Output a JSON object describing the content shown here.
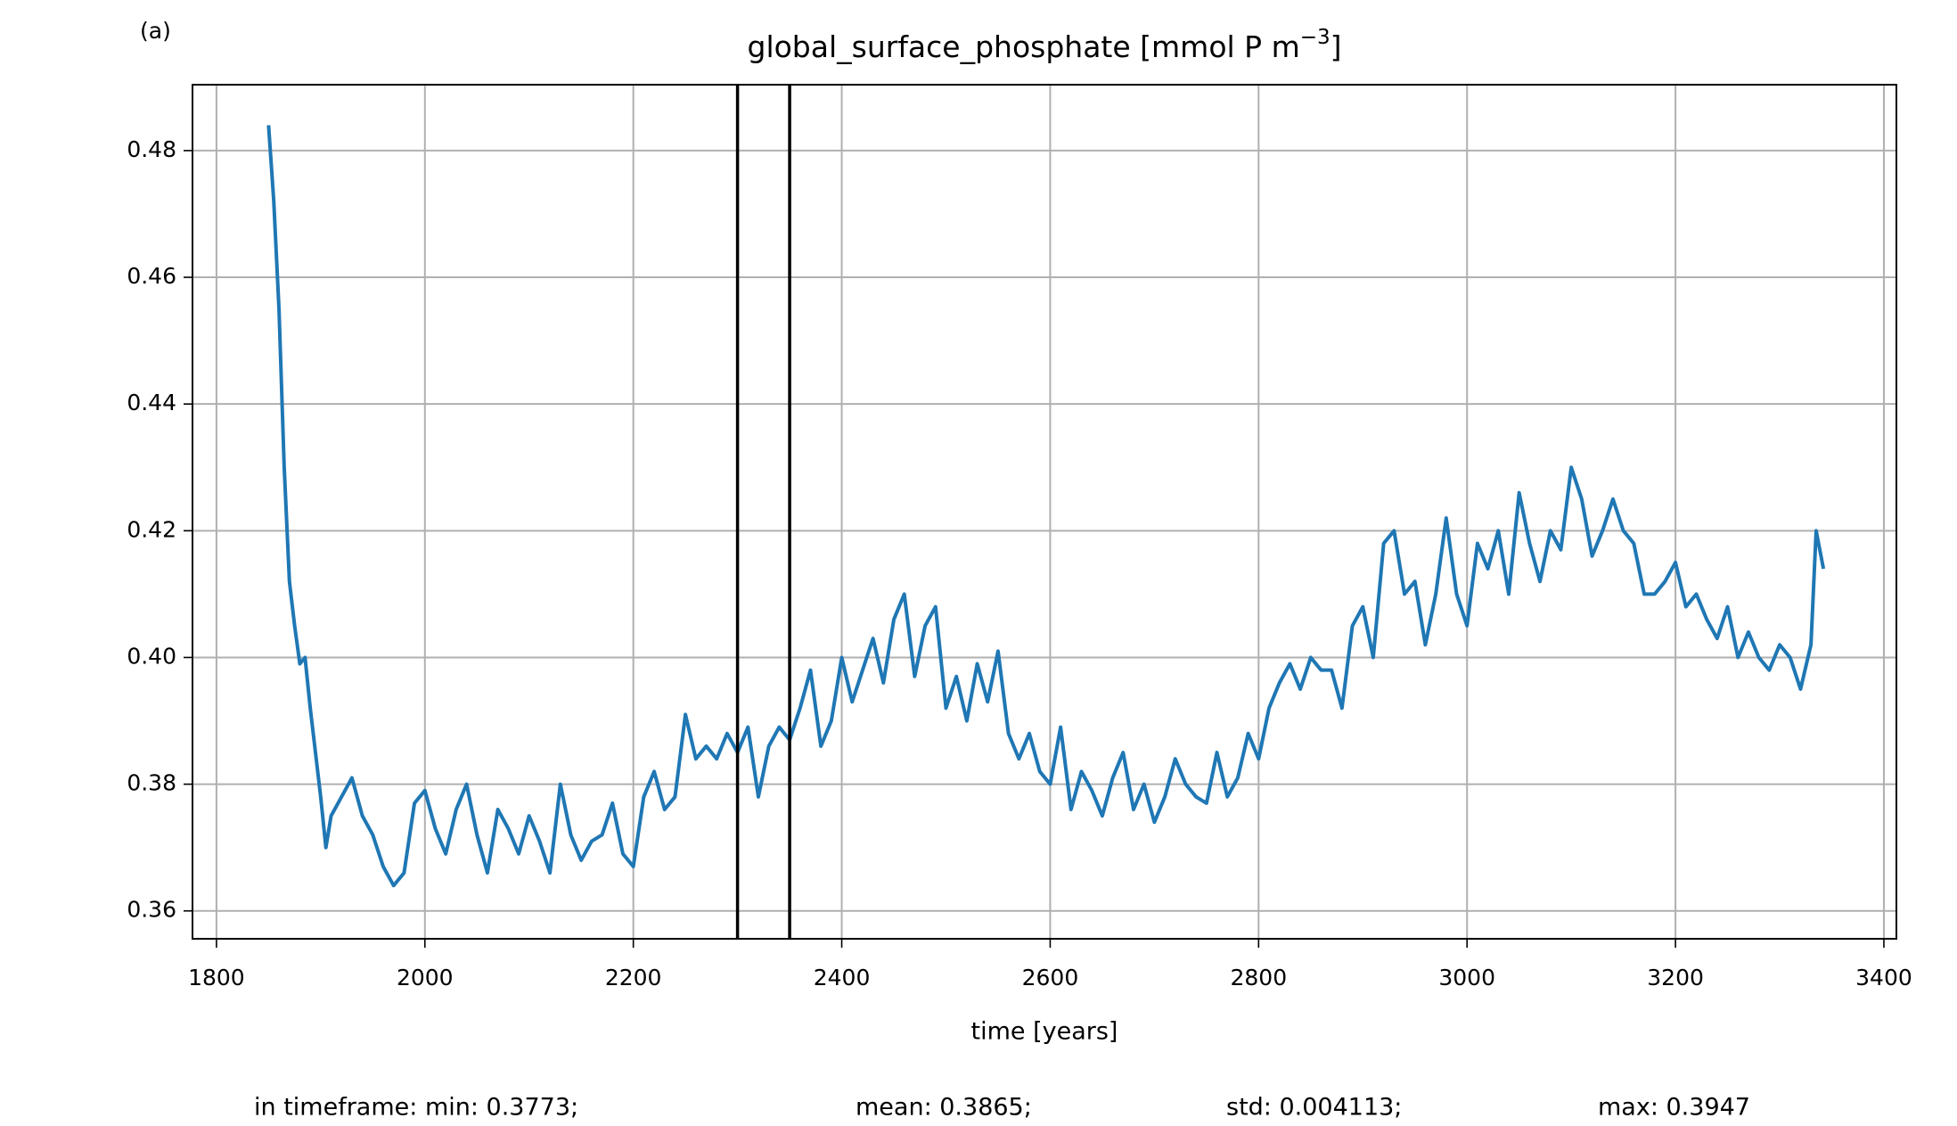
{
  "chart_data": {
    "type": "line",
    "panel_label": "(a)",
    "title": "global_surface_phosphate [mmol P m",
    "title_superscript": "−3",
    "title_end": "]",
    "xlabel": "time [years]",
    "annotations": [
      "in timeframe: min: 0.3773;",
      "mean: 0.3865;",
      "std: 0.004113;",
      "max: 0.3947"
    ],
    "x": [
      1850,
      1855,
      1860,
      1865,
      1870,
      1875,
      1880,
      1885,
      1890,
      1895,
      1900,
      1905,
      1910,
      1920,
      1930,
      1940,
      1950,
      1960,
      1970,
      1980,
      1990,
      2000,
      2010,
      2020,
      2030,
      2040,
      2050,
      2060,
      2070,
      2080,
      2090,
      2100,
      2110,
      2120,
      2130,
      2140,
      2150,
      2160,
      2170,
      2180,
      2190,
      2200,
      2210,
      2220,
      2230,
      2240,
      2250,
      2260,
      2270,
      2280,
      2290,
      2300,
      2310,
      2320,
      2330,
      2340,
      2350,
      2360,
      2370,
      2380,
      2390,
      2400,
      2410,
      2420,
      2430,
      2440,
      2450,
      2460,
      2470,
      2480,
      2490,
      2500,
      2510,
      2520,
      2530,
      2540,
      2550,
      2560,
      2570,
      2580,
      2590,
      2600,
      2610,
      2620,
      2630,
      2640,
      2650,
      2660,
      2670,
      2680,
      2690,
      2700,
      2710,
      2720,
      2730,
      2740,
      2750,
      2760,
      2770,
      2780,
      2790,
      2800,
      2810,
      2820,
      2830,
      2840,
      2850,
      2860,
      2870,
      2880,
      2890,
      2900,
      2910,
      2920,
      2930,
      2940,
      2950,
      2960,
      2970,
      2980,
      2990,
      3000,
      3010,
      3020,
      3030,
      3040,
      3050,
      3060,
      3070,
      3080,
      3090,
      3100,
      3110,
      3120,
      3130,
      3140,
      3150,
      3160,
      3170,
      3180,
      3190,
      3200,
      3210,
      3220,
      3230,
      3240,
      3250,
      3260,
      3270,
      3280,
      3290,
      3300,
      3310,
      3320,
      3330,
      3335,
      3342
    ],
    "series": [
      {
        "color": "#1f77b4",
        "values": [
          0.484,
          0.472,
          0.455,
          0.43,
          0.412,
          0.405,
          0.399,
          0.4,
          0.392,
          0.385,
          0.378,
          0.37,
          0.375,
          0.378,
          0.381,
          0.375,
          0.372,
          0.367,
          0.364,
          0.366,
          0.377,
          0.379,
          0.373,
          0.369,
          0.376,
          0.38,
          0.372,
          0.366,
          0.376,
          0.373,
          0.369,
          0.375,
          0.371,
          0.366,
          0.38,
          0.372,
          0.368,
          0.371,
          0.372,
          0.377,
          0.369,
          0.367,
          0.378,
          0.382,
          0.376,
          0.378,
          0.391,
          0.384,
          0.386,
          0.384,
          0.388,
          0.385,
          0.389,
          0.378,
          0.386,
          0.389,
          0.387,
          0.392,
          0.398,
          0.386,
          0.39,
          0.4,
          0.393,
          0.398,
          0.403,
          0.396,
          0.406,
          0.41,
          0.397,
          0.405,
          0.408,
          0.392,
          0.397,
          0.39,
          0.399,
          0.393,
          0.401,
          0.388,
          0.384,
          0.388,
          0.382,
          0.38,
          0.389,
          0.376,
          0.382,
          0.379,
          0.375,
          0.381,
          0.385,
          0.376,
          0.38,
          0.374,
          0.378,
          0.384,
          0.38,
          0.378,
          0.377,
          0.385,
          0.378,
          0.381,
          0.388,
          0.384,
          0.392,
          0.396,
          0.399,
          0.395,
          0.4,
          0.398,
          0.398,
          0.392,
          0.405,
          0.408,
          0.4,
          0.418,
          0.42,
          0.41,
          0.412,
          0.402,
          0.41,
          0.422,
          0.41,
          0.405,
          0.418,
          0.414,
          0.42,
          0.41,
          0.426,
          0.418,
          0.412,
          0.42,
          0.417,
          0.43,
          0.425,
          0.416,
          0.42,
          0.425,
          0.42,
          0.418,
          0.41,
          0.41,
          0.412,
          0.415,
          0.408,
          0.41,
          0.406,
          0.403,
          0.408,
          0.4,
          0.404,
          0.4,
          0.398,
          0.402,
          0.4,
          0.395,
          0.402,
          0.42,
          0.414
        ]
      }
    ],
    "vlines": [
      2300,
      2350
    ],
    "vline_color": "#000000",
    "xlim": [
      1777,
      3412
    ],
    "ylim": [
      0.3556,
      0.4904
    ],
    "xticks": [
      1800,
      2000,
      2200,
      2400,
      2600,
      2800,
      3000,
      3200,
      3400
    ],
    "yticks": [
      0.36,
      0.38,
      {
        "value": 0.4,
        "label": "0.40"
      },
      0.42,
      0.44,
      0.46,
      0.48
    ],
    "grid": true
  }
}
